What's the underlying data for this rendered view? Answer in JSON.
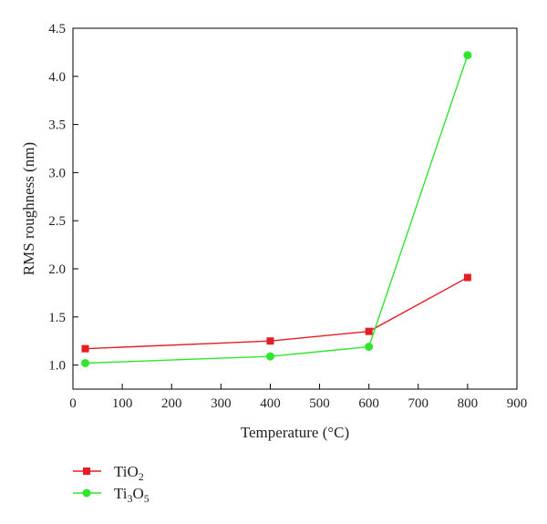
{
  "chart_data": {
    "type": "line",
    "xlabel": "Temperature (°C)",
    "ylabel": "RMS roughness (nm)",
    "xlim": [
      0,
      900
    ],
    "ylim": [
      0.75,
      4.5
    ],
    "xticks": [
      0,
      100,
      200,
      300,
      400,
      500,
      600,
      700,
      800,
      900
    ],
    "yticks": [
      1.0,
      1.5,
      2.0,
      2.5,
      3.0,
      3.5,
      4.0,
      4.5
    ],
    "xtick_labels": [
      "0",
      "100",
      "200",
      "300",
      "400",
      "500",
      "600",
      "700",
      "800",
      "900"
    ],
    "ytick_labels": [
      "1.0",
      "1.5",
      "2.0",
      "2.5",
      "3.0",
      "3.5",
      "4.0",
      "4.5"
    ],
    "grid": false,
    "legend_position": "bottom-left",
    "series": [
      {
        "name": "TiO2",
        "legend_base": "TiO",
        "legend_sub": "2",
        "color": "#e31e24",
        "marker": "square",
        "x": [
          25,
          400,
          600,
          800
        ],
        "y": [
          1.17,
          1.25,
          1.35,
          1.91
        ]
      },
      {
        "name": "Ti3O5",
        "legend_base": "Ti",
        "legend_sub": "3",
        "legend_mid": "O",
        "legend_sub2": "5",
        "color": "#2ee62e",
        "marker": "circle",
        "x": [
          25,
          400,
          600,
          800
        ],
        "y": [
          1.02,
          1.09,
          1.19,
          4.22
        ]
      }
    ]
  }
}
